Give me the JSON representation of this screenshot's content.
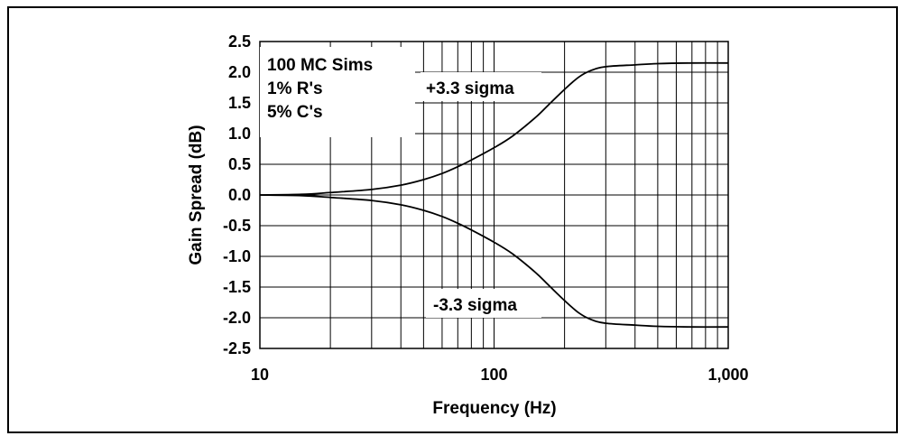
{
  "chart_data": {
    "type": "line",
    "xlabel": "Frequency (Hz)",
    "ylabel": "Gain Spread (dB)",
    "x_scale": "log",
    "xlim": [
      10,
      1000
    ],
    "ylim": [
      -2.5,
      2.5
    ],
    "x_ticks": [
      10,
      100,
      1000
    ],
    "x_tick_labels": [
      "10",
      "100",
      "1,000"
    ],
    "y_ticks": [
      2.5,
      2.0,
      1.5,
      1.0,
      0.5,
      0.0,
      -0.5,
      -1.0,
      -1.5,
      -2.0,
      -2.5
    ],
    "y_tick_labels": [
      "2.5",
      "2.0",
      "1.5",
      "1.0",
      "0.5",
      "0.0",
      "-0.5",
      "-1.0",
      "-1.5",
      "-2.0",
      "-2.5"
    ],
    "grid": true,
    "annotation_lines": [
      "100 MC Sims",
      "1% R's",
      "5% C's"
    ],
    "series": [
      {
        "name": "+3.3 sigma",
        "x": [
          10,
          15,
          20,
          30,
          40,
          50,
          60,
          70,
          80,
          100,
          120,
          150,
          170,
          200,
          230,
          260,
          300,
          400,
          500,
          700,
          1000
        ],
        "y": [
          0.0,
          0.01,
          0.04,
          0.09,
          0.16,
          0.25,
          0.35,
          0.46,
          0.57,
          0.77,
          0.96,
          1.26,
          1.46,
          1.72,
          1.92,
          2.03,
          2.09,
          2.12,
          2.14,
          2.15,
          2.15
        ]
      },
      {
        "name": "-3.3 sigma",
        "x": [
          10,
          15,
          20,
          30,
          40,
          50,
          60,
          70,
          80,
          100,
          120,
          150,
          170,
          200,
          230,
          260,
          300,
          400,
          500,
          700,
          1000
        ],
        "y": [
          0.0,
          -0.01,
          -0.04,
          -0.09,
          -0.16,
          -0.25,
          -0.35,
          -0.46,
          -0.57,
          -0.77,
          -0.96,
          -1.26,
          -1.46,
          -1.72,
          -1.92,
          -2.03,
          -2.09,
          -2.12,
          -2.14,
          -2.15,
          -2.15
        ]
      }
    ]
  }
}
